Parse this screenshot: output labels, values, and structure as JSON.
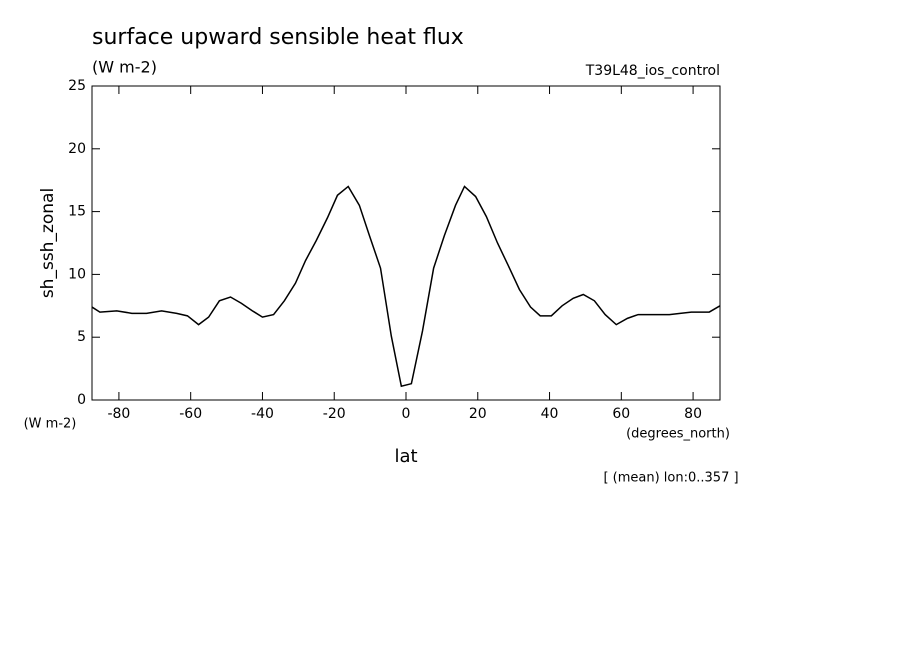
{
  "chart_data": {
    "type": "line",
    "title": "surface upward sensible heat flux",
    "subtitle": "(W m-2)",
    "annotation": "T39L48_ios_control",
    "ylabel": "sh_ssh_zonal",
    "yunits": "(W m-2)",
    "xunits": "(degrees_north)",
    "xlabel": "lat",
    "footnote": "[ (mean) lon:0..357 ]",
    "xlim": [
      -87.5,
      87.5
    ],
    "ylim": [
      0,
      25
    ],
    "xticks": [
      -80,
      -60,
      -40,
      -20,
      0,
      20,
      40,
      60,
      80
    ],
    "yticks": [
      0,
      5,
      10,
      15,
      20,
      25
    ],
    "x": [
      -87.5,
      -85.3,
      -80.6,
      -76.4,
      -72.3,
      -68.1,
      -63.9,
      -60.9,
      -57.8,
      -55.0,
      -52.0,
      -48.9,
      -45.9,
      -42.8,
      -40.0,
      -36.9,
      -33.9,
      -30.8,
      -28.0,
      -25.0,
      -21.9,
      -19.1,
      -16.1,
      -13.0,
      -10.2,
      -7.1,
      -4.1,
      -1.3,
      1.5,
      4.6,
      7.7,
      10.7,
      13.8,
      16.3,
      19.4,
      22.4,
      25.5,
      28.5,
      31.6,
      34.7,
      37.4,
      40.5,
      43.5,
      46.6,
      49.4,
      52.5,
      55.5,
      58.6,
      61.7,
      64.7,
      67.5,
      70.6,
      73.4,
      76.4,
      79.5,
      84.5,
      87.5
    ],
    "series": [
      {
        "color": "#000000",
        "values": [
          7.4,
          7.0,
          7.1,
          6.9,
          6.9,
          7.1,
          6.9,
          6.7,
          6.0,
          6.6,
          7.9,
          8.2,
          7.7,
          7.1,
          6.6,
          6.8,
          7.9,
          9.3,
          11.1,
          12.7,
          14.5,
          16.3,
          17.0,
          15.5,
          13.1,
          10.5,
          5.1,
          1.1,
          1.3,
          5.5,
          10.5,
          13.1,
          15.5,
          17.0,
          16.2,
          14.6,
          12.5,
          10.7,
          8.8,
          7.4,
          6.7,
          6.7,
          7.5,
          8.1,
          8.4,
          7.9,
          6.8,
          6.0,
          6.5,
          6.8,
          6.8,
          6.8,
          6.8,
          6.9,
          7.0,
          7.0,
          7.5
        ]
      }
    ]
  }
}
